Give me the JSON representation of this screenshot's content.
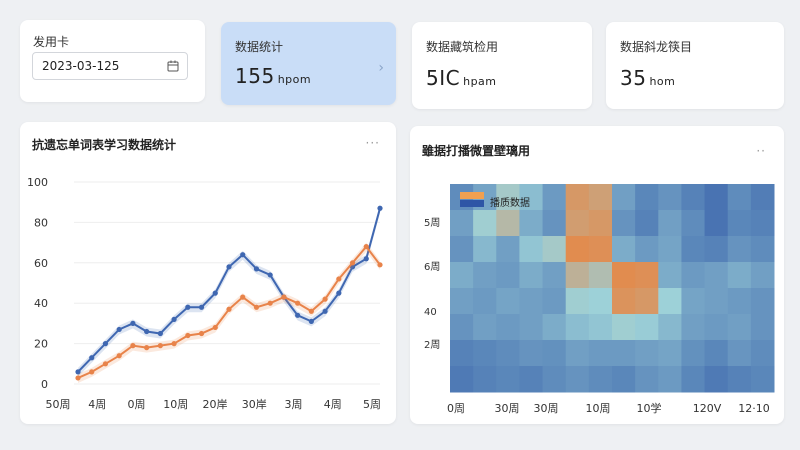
{
  "date_card": {
    "label": "发用卡",
    "date_value": "2023-03-125"
  },
  "stat_cards": [
    {
      "title": "数据统计",
      "value": "155",
      "unit": "hpom"
    },
    {
      "title": "数据藏筑检用",
      "value": "5IC",
      "unit": "hpam"
    },
    {
      "title": "数据斜龙筷目",
      "value": "35",
      "unit": "hom"
    }
  ],
  "line_panel": {
    "title": "抗遗忘单词表学习数据统计",
    "more": "···"
  },
  "heatmap_panel": {
    "title": "雖据打播微置壁璃用",
    "more": "··"
  },
  "colors": {
    "blue": "#3f67b1",
    "orange": "#e8834a",
    "accent_card": "#c9ddf7"
  },
  "icons": [
    "calendar-icon",
    "chevron-right-icon",
    "more-icon"
  ],
  "chart_data": [
    {
      "type": "line",
      "title": "抗遗忘单词表学习数据统计",
      "ylim": [
        0,
        100
      ],
      "y_ticks": [
        "0",
        "20",
        "40",
        "60",
        "80",
        "100"
      ],
      "x_tick_labels": [
        "50周",
        "4周",
        "0周",
        "10周",
        "20岸",
        "30岸",
        "3周",
        "4周",
        "5周"
      ],
      "x": [
        0,
        1,
        2,
        3,
        4,
        5,
        6,
        7,
        8,
        9,
        10,
        11,
        12,
        13,
        14,
        15,
        16,
        17,
        18,
        19,
        20,
        21,
        22
      ],
      "series": [
        {
          "color": "#3f67b1",
          "values": [
            6,
            13,
            20,
            27,
            30,
            26,
            25,
            32,
            38,
            38,
            45,
            58,
            64,
            57,
            54,
            43,
            34,
            31,
            36,
            45,
            58,
            62,
            87
          ]
        },
        {
          "color": "#e8834a",
          "values": [
            3,
            6,
            10,
            14,
            19,
            18,
            19,
            20,
            24,
            25,
            28,
            37,
            43,
            38,
            40,
            43,
            40,
            36,
            42,
            52,
            60,
            68,
            59
          ]
        }
      ]
    },
    {
      "type": "heatmap",
      "title": "雖据打播微置壁璃用",
      "legend": {
        "label": "播质数据"
      },
      "y_tick_labels": [
        "5周",
        "6周",
        "40",
        "2周"
      ],
      "x_tick_labels": [
        "0周",
        "30周",
        "30周",
        "10周",
        "10学",
        "120V",
        "12·10"
      ],
      "color_scale": {
        "low": "#2e55a6",
        "mid": "#9dd1d8",
        "high": "#ee7f35"
      },
      "values": [
        [
          0.22,
          0.32,
          0.55,
          0.42,
          0.28,
          0.85,
          0.8,
          0.3,
          0.2,
          0.25,
          0.18,
          0.12,
          0.22,
          0.16
        ],
        [
          0.3,
          0.52,
          0.65,
          0.35,
          0.25,
          0.82,
          0.85,
          0.25,
          0.18,
          0.3,
          0.22,
          0.12,
          0.2,
          0.18
        ],
        [
          0.25,
          0.4,
          0.3,
          0.45,
          0.55,
          0.92,
          0.9,
          0.35,
          0.28,
          0.32,
          0.2,
          0.18,
          0.25,
          0.22
        ],
        [
          0.35,
          0.3,
          0.28,
          0.35,
          0.3,
          0.7,
          0.62,
          0.92,
          0.9,
          0.35,
          0.28,
          0.3,
          0.35,
          0.3
        ],
        [
          0.3,
          0.28,
          0.32,
          0.3,
          0.28,
          0.52,
          0.5,
          0.88,
          0.85,
          0.5,
          0.32,
          0.3,
          0.28,
          0.25
        ],
        [
          0.25,
          0.3,
          0.28,
          0.3,
          0.35,
          0.42,
          0.45,
          0.52,
          0.48,
          0.4,
          0.3,
          0.28,
          0.3,
          0.25
        ],
        [
          0.18,
          0.2,
          0.22,
          0.25,
          0.24,
          0.3,
          0.28,
          0.28,
          0.3,
          0.32,
          0.24,
          0.2,
          0.26,
          0.22
        ],
        [
          0.15,
          0.18,
          0.2,
          0.18,
          0.22,
          0.25,
          0.22,
          0.2,
          0.25,
          0.28,
          0.2,
          0.15,
          0.18,
          0.2
        ]
      ]
    }
  ]
}
